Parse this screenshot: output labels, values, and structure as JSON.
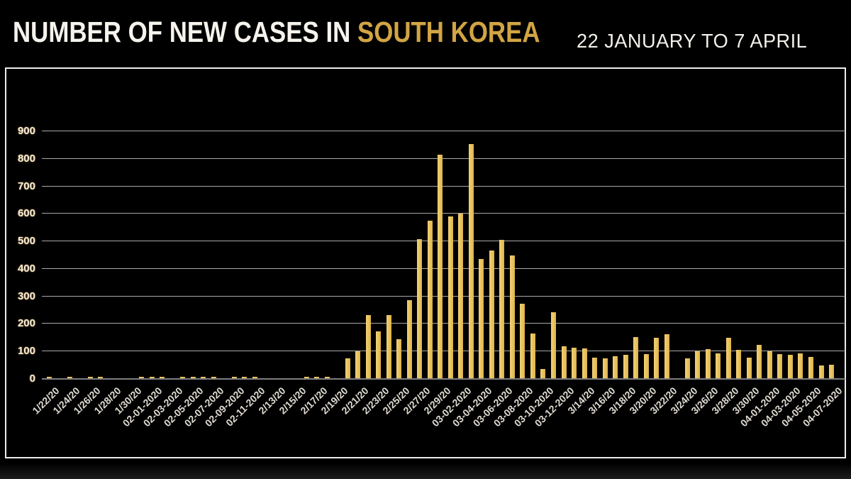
{
  "header": {
    "title_white": "NUMBER OF NEW CASES IN",
    "title_accent": "SOUTH KOREA",
    "date_range": "22 JANUARY TO 7 APRIL"
  },
  "colors": {
    "background": "#000000",
    "title_text": "#F6F3ED",
    "accent_gold": "#D2A544",
    "bar_fill": "#E8C35C",
    "gridline": "#A8A8A8",
    "axis_line": "#7E7E7E",
    "y_tick_text": "#F7F0DE",
    "x_tick_text": "#DFDAD1",
    "frame_border": "#ECECEC"
  },
  "chart_data": {
    "type": "bar",
    "title": "NUMBER OF NEW CASES IN SOUTH KOREA",
    "subtitle": "22 JANUARY TO 7 APRIL",
    "xlabel": "",
    "ylabel": "",
    "ylim": [
      0,
      900
    ],
    "yticks": [
      0,
      100,
      200,
      300,
      400,
      500,
      600,
      700,
      800,
      900
    ],
    "grid": true,
    "legend": false,
    "label_every": 2,
    "x_tick_labels": [
      "1/22/20",
      "1/24/20",
      "1/26/20",
      "1/28/20",
      "1/30/20",
      "02-01-2020",
      "02-03-2020",
      "02-05-2020",
      "02-07-2020",
      "02-09-2020",
      "02-11-2020",
      "2/13/20",
      "2/15/20",
      "2/17/20",
      "2/19/20",
      "2/21/20",
      "2/23/20",
      "2/25/20",
      "2/27/20",
      "2/29/20",
      "03-02-2020",
      "03-04-2020",
      "03-06-2020",
      "03-08-2020",
      "03-10-2020",
      "03-12-2020",
      "3/14/20",
      "3/16/20",
      "3/18/20",
      "3/20/20",
      "3/22/20",
      "3/24/20",
      "3/26/20",
      "3/28/20",
      "3/30/20",
      "04-01-2020",
      "04-03-2020",
      "04-05-2020",
      "04-07-2020"
    ],
    "dates": [
      "1/22/20",
      "1/23/20",
      "1/24/20",
      "1/25/20",
      "1/26/20",
      "1/27/20",
      "1/28/20",
      "1/29/20",
      "1/30/20",
      "1/31/20",
      "2/1/20",
      "2/2/20",
      "2/3/20",
      "2/4/20",
      "2/5/20",
      "2/6/20",
      "2/7/20",
      "2/8/20",
      "2/9/20",
      "2/10/20",
      "2/11/20",
      "2/12/20",
      "2/13/20",
      "2/14/20",
      "2/15/20",
      "2/16/20",
      "2/17/20",
      "2/18/20",
      "2/19/20",
      "2/20/20",
      "2/21/20",
      "2/22/20",
      "2/23/20",
      "2/24/20",
      "2/25/20",
      "2/26/20",
      "2/27/20",
      "2/28/20",
      "2/29/20",
      "3/1/20",
      "3/2/20",
      "3/3/20",
      "3/4/20",
      "3/5/20",
      "3/6/20",
      "3/7/20",
      "3/8/20",
      "3/9/20",
      "3/10/20",
      "3/11/20",
      "3/12/20",
      "3/13/20",
      "3/14/20",
      "3/15/20",
      "3/16/20",
      "3/17/20",
      "3/18/20",
      "3/19/20",
      "3/20/20",
      "3/21/20",
      "3/22/20",
      "3/23/20",
      "3/24/20",
      "3/25/20",
      "3/26/20",
      "3/27/20",
      "3/28/20",
      "3/29/20",
      "3/30/20",
      "3/31/20",
      "4/1/20",
      "4/2/20",
      "4/3/20",
      "4/4/20",
      "4/5/20",
      "4/6/20",
      "4/7/20"
    ],
    "values": [
      1,
      0,
      1,
      0,
      1,
      1,
      0,
      0,
      0,
      2,
      1,
      2,
      0,
      1,
      2,
      2,
      1,
      0,
      2,
      1,
      1,
      0,
      0,
      0,
      0,
      1,
      2,
      5,
      0,
      72,
      98,
      229,
      169,
      230,
      143,
      284,
      505,
      573,
      812,
      588,
      599,
      851,
      434,
      465,
      504,
      445,
      272,
      162,
      34,
      240,
      115,
      112,
      108,
      75,
      73,
      80,
      86,
      150,
      87,
      146,
      160,
      0,
      73,
      98,
      105,
      91,
      146,
      103,
      74,
      121,
      97,
      88,
      85,
      91,
      78,
      47,
      48
    ]
  }
}
